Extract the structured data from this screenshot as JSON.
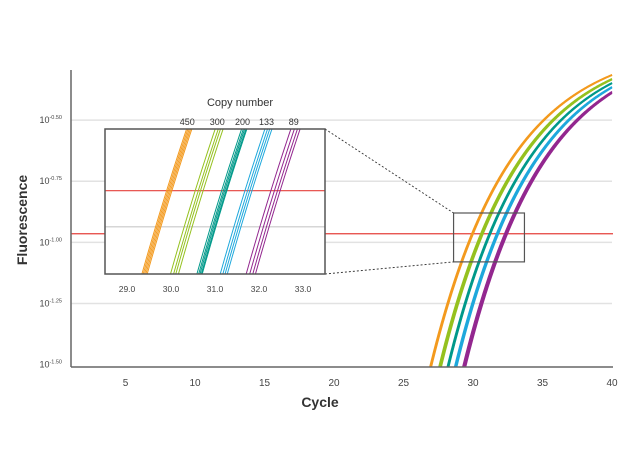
{
  "chart_data": {
    "type": "line",
    "xlabel": "Cycle",
    "ylabel": "Fluorescence",
    "xlim": [
      1,
      40
    ],
    "ylim_log10": [
      -1.51,
      -0.295
    ],
    "y_scale": "log10",
    "xticks": [
      5,
      10,
      15,
      20,
      25,
      30,
      35,
      40
    ],
    "xtick_labels": [
      "5",
      "10",
      "15",
      "20",
      "25",
      "30",
      "35",
      "40"
    ],
    "yticks_log10": [
      -0.5,
      -0.75,
      -1.0,
      -1.25,
      -1.5
    ],
    "ytick_labels": [
      {
        "base": "10",
        "exponent": "-0.50"
      },
      {
        "base": "10",
        "exponent": "-0.75"
      },
      {
        "base": "10",
        "exponent": "-1.00"
      },
      {
        "base": "10",
        "exponent": "-1.25"
      },
      {
        "base": "10",
        "exponent": "-1.50"
      }
    ],
    "grid": "horizontal",
    "threshold_log10": -0.965,
    "threshold_color": "#e5403b",
    "series": [
      {
        "name": "450",
        "color": "#f39a1e",
        "ct": [
          29.9,
          29.93,
          29.96,
          29.99,
          30.02
        ]
      },
      {
        "name": "300",
        "color": "#95c11f",
        "ct": [
          30.55,
          30.62,
          30.67,
          30.73
        ]
      },
      {
        "name": "200",
        "color": "#00998a",
        "ct": [
          31.15,
          31.19,
          31.22,
          31.25,
          31.27
        ]
      },
      {
        "name": "133",
        "color": "#1ea8dc",
        "ct": [
          31.68,
          31.74,
          31.79,
          31.84
        ]
      },
      {
        "name": "89",
        "color": "#93278f",
        "ct": [
          32.27,
          32.35,
          32.42,
          32.48
        ]
      }
    ],
    "zoom_box": {
      "x": [
        28.6,
        33.7
      ],
      "y_log10": [
        -1.08,
        -0.88
      ]
    },
    "inset": {
      "title": "Copy number",
      "xlim": [
        28.5,
        33.5
      ],
      "ylim_log10": [
        -1.046,
        -0.905
      ],
      "xticks": [
        29.0,
        30.0,
        31.0,
        32.0,
        33.0
      ],
      "xtick_labels": [
        "29.0",
        "30.0",
        "31.0",
        "32.0",
        "33.0"
      ],
      "grid_log10": [
        -1.0
      ]
    }
  }
}
